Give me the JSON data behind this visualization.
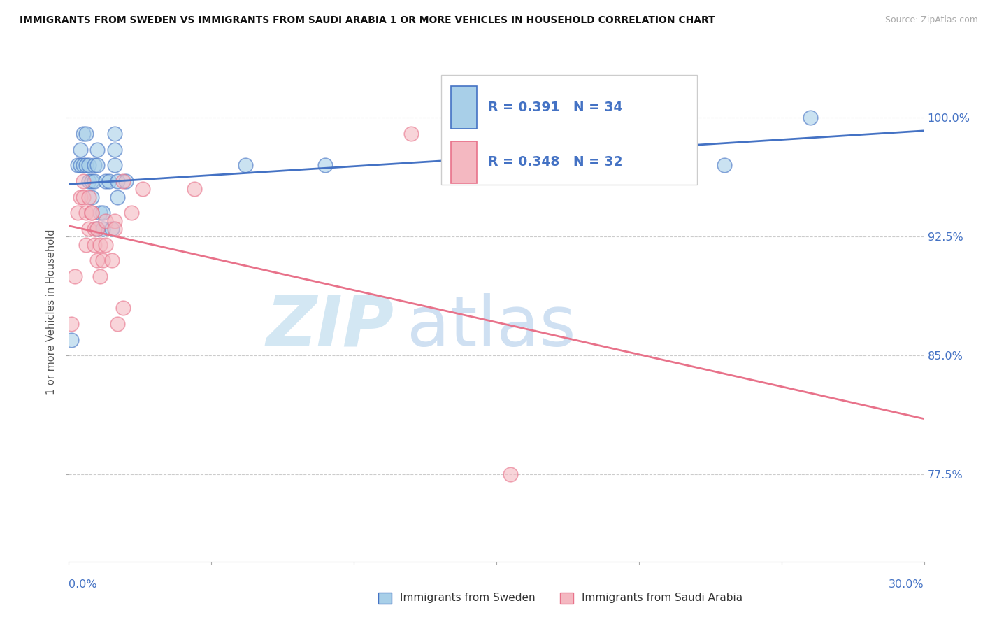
{
  "title": "IMMIGRANTS FROM SWEDEN VS IMMIGRANTS FROM SAUDI ARABIA 1 OR MORE VEHICLES IN HOUSEHOLD CORRELATION CHART",
  "source": "Source: ZipAtlas.com",
  "ylabel": "1 or more Vehicles in Household",
  "yticks": [
    0.775,
    0.85,
    0.925,
    1.0
  ],
  "ytick_labels": [
    "77.5%",
    "85.0%",
    "92.5%",
    "100.0%"
  ],
  "xlim": [
    0.0,
    0.3
  ],
  "ylim": [
    0.72,
    1.035
  ],
  "legend_sweden": "Immigrants from Sweden",
  "legend_saudi": "Immigrants from Saudi Arabia",
  "R_sweden": 0.391,
  "N_sweden": 34,
  "R_saudi": 0.348,
  "N_saudi": 32,
  "color_sweden": "#a8cfe8",
  "color_saudi": "#f4b8c1",
  "trendline_color_sweden": "#4472c4",
  "trendline_color_saudi": "#e8728a",
  "sweden_x": [
    0.001,
    0.003,
    0.004,
    0.004,
    0.005,
    0.005,
    0.006,
    0.006,
    0.007,
    0.007,
    0.008,
    0.008,
    0.009,
    0.009,
    0.01,
    0.01,
    0.01,
    0.011,
    0.012,
    0.012,
    0.013,
    0.014,
    0.015,
    0.016,
    0.016,
    0.016,
    0.017,
    0.017,
    0.02,
    0.062,
    0.09,
    0.148,
    0.23,
    0.26
  ],
  "sweden_y": [
    0.86,
    0.97,
    0.97,
    0.98,
    0.97,
    0.99,
    0.97,
    0.99,
    0.96,
    0.97,
    0.95,
    0.96,
    0.96,
    0.97,
    0.97,
    0.98,
    0.93,
    0.94,
    0.93,
    0.94,
    0.96,
    0.96,
    0.93,
    0.97,
    0.98,
    0.99,
    0.95,
    0.96,
    0.96,
    0.97,
    0.97,
    0.97,
    0.97,
    1.0
  ],
  "saudi_x": [
    0.001,
    0.002,
    0.003,
    0.004,
    0.005,
    0.005,
    0.006,
    0.006,
    0.007,
    0.007,
    0.008,
    0.008,
    0.009,
    0.009,
    0.01,
    0.01,
    0.011,
    0.011,
    0.012,
    0.013,
    0.013,
    0.015,
    0.016,
    0.016,
    0.017,
    0.019,
    0.019,
    0.022,
    0.026,
    0.044,
    0.12,
    0.155
  ],
  "saudi_y": [
    0.87,
    0.9,
    0.94,
    0.95,
    0.95,
    0.96,
    0.92,
    0.94,
    0.93,
    0.95,
    0.94,
    0.94,
    0.92,
    0.93,
    0.91,
    0.93,
    0.9,
    0.92,
    0.91,
    0.935,
    0.92,
    0.91,
    0.935,
    0.93,
    0.87,
    0.96,
    0.88,
    0.94,
    0.955,
    0.955,
    0.99,
    0.775
  ],
  "background_color": "#ffffff"
}
